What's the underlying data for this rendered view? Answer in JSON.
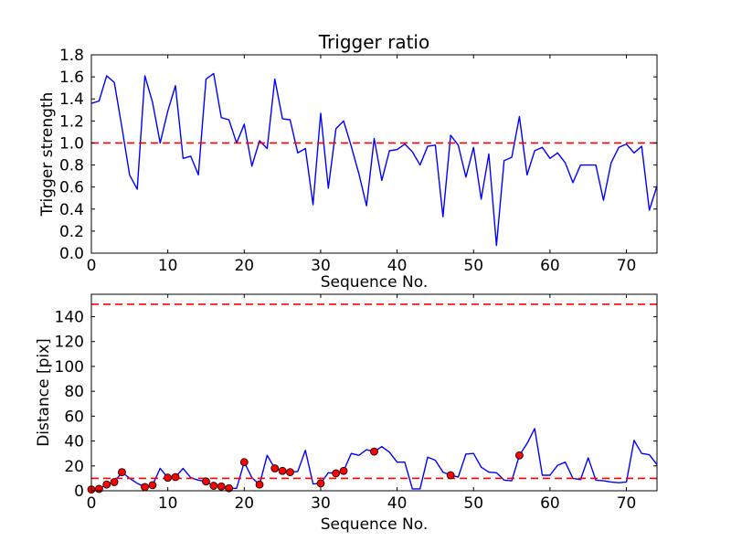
{
  "figure": {
    "background": "#ffffff",
    "axis_color": "#000000",
    "line_color": "#0000ff",
    "threshold_color": "#ff0000",
    "marker_face_color": "#ff0000",
    "marker_edge_color": "#000000"
  },
  "chart_data": [
    {
      "type": "line",
      "title": "Trigger ratio",
      "xlabel": "Sequence No.",
      "ylabel": "Trigger strength",
      "xlim": [
        0,
        74
      ],
      "ylim": [
        0,
        1.8
      ],
      "xticks": [
        0,
        10,
        20,
        30,
        40,
        50,
        60,
        70
      ],
      "xticklabels": [
        "0",
        "10",
        "20",
        "30",
        "40",
        "50",
        "60",
        "70"
      ],
      "yticks": [
        0.0,
        0.2,
        0.4,
        0.6,
        0.8,
        1.0,
        1.2,
        1.4,
        1.6,
        1.8
      ],
      "yticklabels": [
        "0.0",
        "0.2",
        "0.4",
        "0.6",
        "0.8",
        "1.0",
        "1.2",
        "1.4",
        "1.6",
        "1.8"
      ],
      "grid": false,
      "legend": null,
      "thresholds": [
        1.0
      ],
      "x": {
        "start": 0,
        "end": 74,
        "step": 1
      },
      "y": [
        1.36,
        1.38,
        1.61,
        1.55,
        1.14,
        0.71,
        0.58,
        1.61,
        1.37,
        1.0,
        1.29,
        1.52,
        0.86,
        0.88,
        0.71,
        1.58,
        1.63,
        1.23,
        1.21,
        1.0,
        1.17,
        0.79,
        1.02,
        0.95,
        1.58,
        1.22,
        1.21,
        0.91,
        0.95,
        0.44,
        1.27,
        0.59,
        1.13,
        1.2,
        0.97,
        0.72,
        0.43,
        1.04,
        0.66,
        0.93,
        0.94,
        0.99,
        0.92,
        0.8,
        0.97,
        0.98,
        0.33,
        1.07,
        0.98,
        0.69,
        0.96,
        0.49,
        0.9,
        0.07,
        0.84,
        0.87,
        1.24,
        0.71,
        0.93,
        0.96,
        0.86,
        0.91,
        0.82,
        0.64,
        0.8,
        0.8,
        0.8,
        0.48,
        0.82,
        0.96,
        0.99,
        0.91,
        0.97,
        0.39,
        0.61
      ],
      "marker_indices": []
    },
    {
      "type": "line",
      "title": "",
      "xlabel": "Sequence No.",
      "ylabel": "Distance [pix]",
      "xlim": [
        0,
        74
      ],
      "ylim": [
        0,
        158
      ],
      "xticks": [
        0,
        10,
        20,
        30,
        40,
        50,
        60,
        70
      ],
      "xticklabels": [
        "0",
        "10",
        "20",
        "30",
        "40",
        "50",
        "60",
        "70"
      ],
      "yticks": [
        0,
        20,
        40,
        60,
        80,
        100,
        120,
        140
      ],
      "yticklabels": [
        "0",
        "20",
        "40",
        "60",
        "80",
        "100",
        "120",
        "140"
      ],
      "grid": false,
      "legend": null,
      "thresholds": [
        150,
        10
      ],
      "x": {
        "start": 0,
        "end": 74,
        "step": 1
      },
      "y": [
        1,
        1.5,
        5,
        7,
        15,
        10,
        6,
        3,
        4.5,
        18,
        10.5,
        11,
        18,
        10.5,
        8.5,
        7.5,
        4,
        3.5,
        2,
        2,
        23,
        10.5,
        5,
        28.5,
        18,
        16,
        15,
        15.5,
        32.5,
        5.5,
        6,
        14.5,
        14,
        16,
        30,
        28.5,
        33,
        31.5,
        35.5,
        31,
        23,
        23,
        1.5,
        1.5,
        27,
        24.5,
        15,
        12.5,
        11,
        29.5,
        30,
        19,
        15,
        14.5,
        8.5,
        8,
        28.5,
        38,
        50,
        12.5,
        12.5,
        20.5,
        23,
        10,
        9,
        26.5,
        8.5,
        8,
        7,
        6.5,
        7,
        40.5,
        30,
        29,
        21
      ],
      "marker_indices": [
        0,
        1,
        2,
        3,
        4,
        7,
        8,
        10,
        11,
        15,
        16,
        17,
        18,
        20,
        22,
        24,
        25,
        26,
        30,
        32,
        33,
        37,
        47,
        56
      ]
    }
  ]
}
